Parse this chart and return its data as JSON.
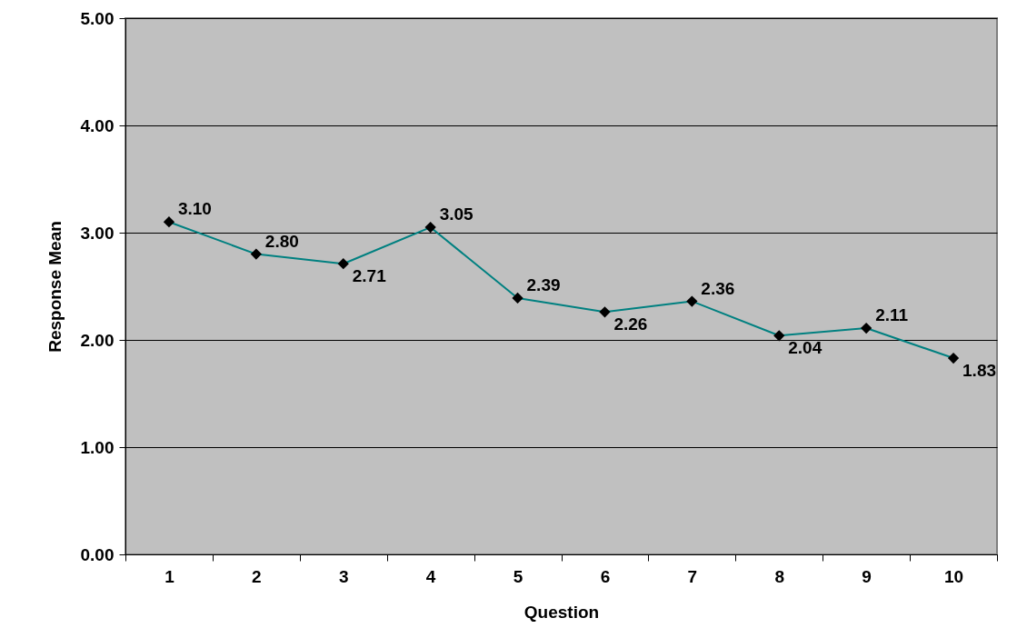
{
  "chart_data": {
    "type": "line",
    "xlabel": "Question",
    "ylabel": "Response Mean",
    "categories": [
      "1",
      "2",
      "3",
      "4",
      "5",
      "6",
      "7",
      "8",
      "9",
      "10"
    ],
    "series": [
      {
        "color": "#008080",
        "values": [
          3.1,
          2.8,
          2.71,
          3.05,
          2.39,
          2.26,
          2.36,
          2.04,
          2.11,
          1.83
        ],
        "value_labels": [
          "3.10",
          "2.80",
          "2.71",
          "3.05",
          "2.39",
          "2.26",
          "2.36",
          "2.04",
          "2.11",
          "1.83"
        ]
      }
    ],
    "ylim": [
      0,
      5
    ],
    "yticks": [
      {
        "value": 0,
        "label": "0.00"
      },
      {
        "value": 1,
        "label": "1.00"
      },
      {
        "value": 2,
        "label": "2.00"
      },
      {
        "value": 3,
        "label": "3.00"
      },
      {
        "value": 4,
        "label": "4.00"
      },
      {
        "value": 5,
        "label": "5.00"
      }
    ],
    "grid": "y",
    "marker": "diamond",
    "line_style": "solid"
  }
}
